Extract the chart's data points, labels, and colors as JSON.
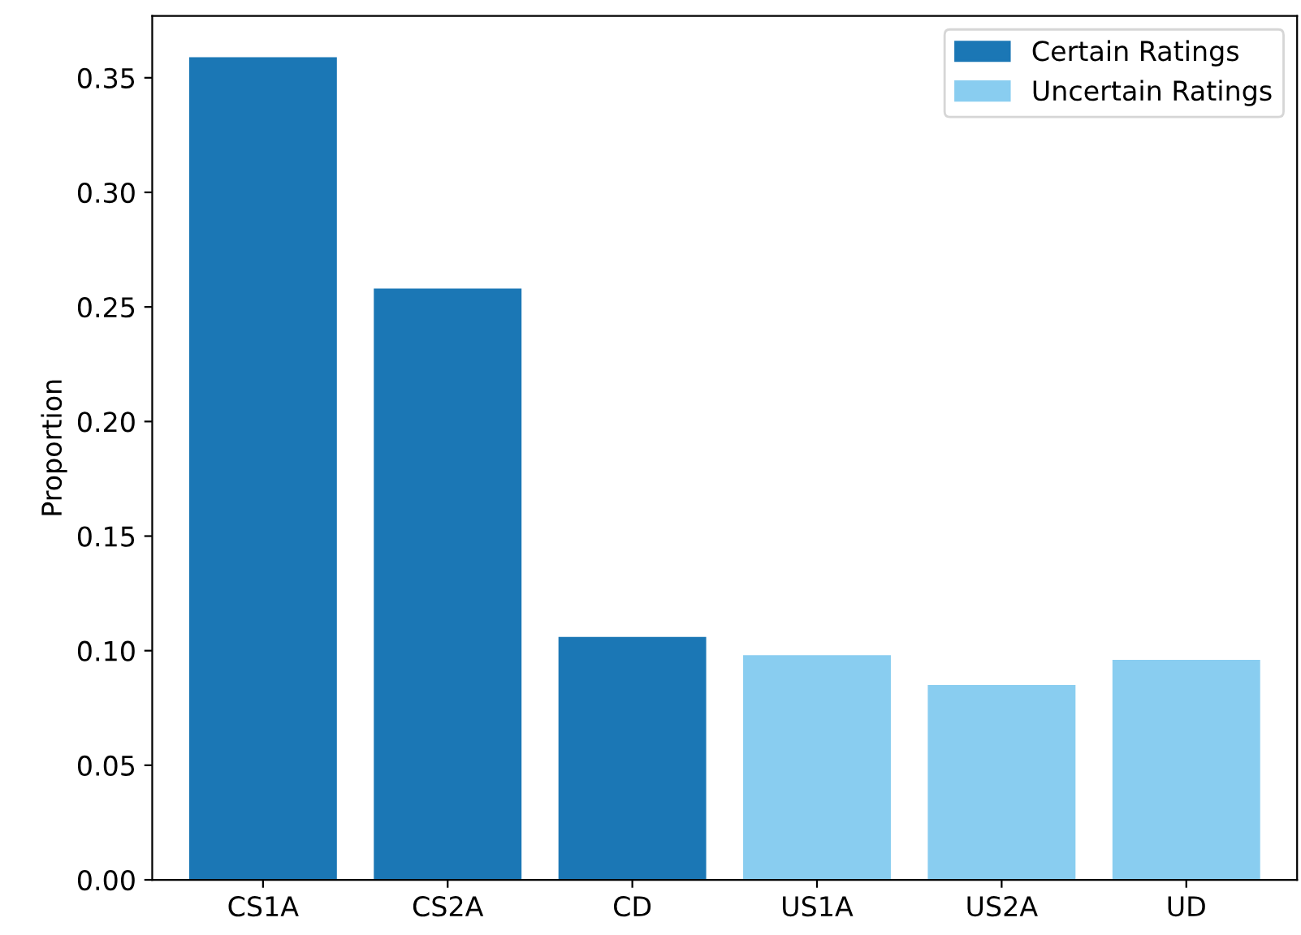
{
  "chart_data": {
    "type": "bar",
    "ylabel": "Proportion",
    "categories": [
      "CS1A",
      "CS2A",
      "CD",
      "US1A",
      "US2A",
      "UD"
    ],
    "series": [
      {
        "name": "Certain Ratings",
        "color": "#1b77b5",
        "values": [
          0.359,
          0.258,
          0.106,
          null,
          null,
          null
        ]
      },
      {
        "name": "Uncertain Ratings",
        "color": "#89cdf0",
        "values": [
          null,
          null,
          null,
          0.098,
          0.085,
          0.096
        ]
      }
    ],
    "ylim": [
      0,
      0.377
    ],
    "yticks": [
      {
        "value": 0,
        "label": "0.00"
      },
      {
        "value": 0.05,
        "label": "0.05"
      },
      {
        "value": 0.1,
        "label": "0.10"
      },
      {
        "value": 0.15,
        "label": "0.15"
      },
      {
        "value": 0.2,
        "label": "0.20"
      },
      {
        "value": 0.25,
        "label": "0.25"
      },
      {
        "value": 0.3,
        "label": "0.30"
      },
      {
        "value": 0.35,
        "label": "0.35"
      }
    ],
    "grid": false,
    "legend": "top right"
  }
}
